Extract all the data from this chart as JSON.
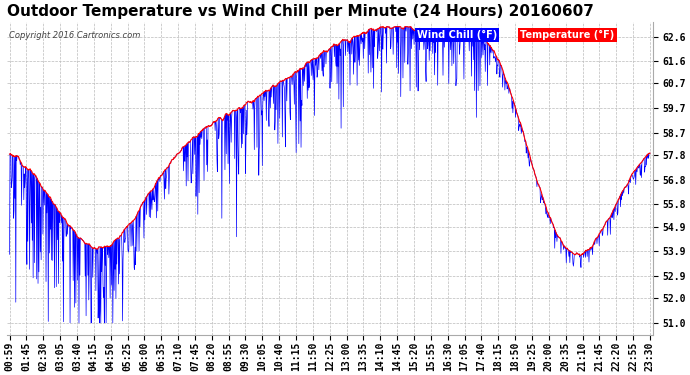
{
  "title": "Outdoor Temperature vs Wind Chill per Minute (24 Hours) 20160607",
  "copyright": "Copyright 2016 Cartronics.com",
  "ylabel_ticks": [
    51.0,
    52.0,
    52.9,
    53.9,
    54.9,
    55.8,
    56.8,
    57.8,
    58.7,
    59.7,
    60.7,
    61.6,
    62.6
  ],
  "ylim": [
    50.5,
    63.2
  ],
  "x_labels": [
    "00:59",
    "01:45",
    "02:30",
    "03:05",
    "03:40",
    "04:15",
    "04:50",
    "05:25",
    "06:00",
    "06:35",
    "07:10",
    "07:45",
    "08:20",
    "08:55",
    "09:30",
    "10:05",
    "10:40",
    "11:15",
    "11:50",
    "12:25",
    "13:00",
    "13:35",
    "14:10",
    "14:45",
    "15:20",
    "15:55",
    "16:30",
    "17:05",
    "17:40",
    "18:15",
    "18:50",
    "19:25",
    "20:00",
    "20:35",
    "21:10",
    "21:45",
    "22:20",
    "22:55",
    "23:30"
  ],
  "bg_color": "#ffffff",
  "plot_bg_color": "#ffffff",
  "grid_color": "#bbbbbb",
  "line_temp_color": "#ff0000",
  "line_wind_color": "#0000ff",
  "legend_wind_bg": "#0000ff",
  "legend_temp_bg": "#ff0000",
  "title_fontsize": 11,
  "tick_fontsize": 7,
  "figsize": [
    6.9,
    3.75
  ],
  "dpi": 100
}
